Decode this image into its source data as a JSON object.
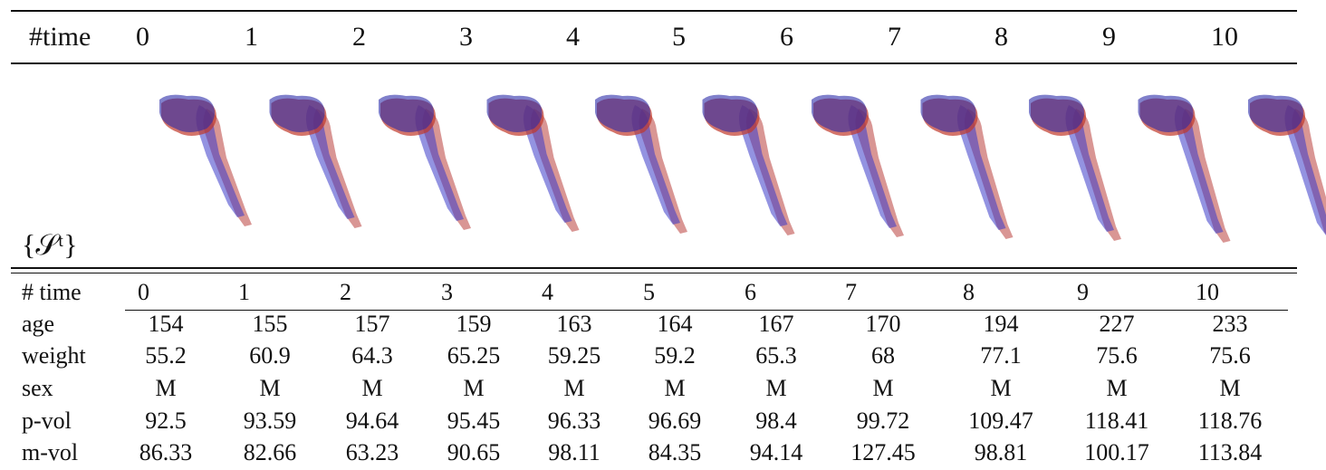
{
  "figure": {
    "header_label": "#time",
    "times": [
      "0",
      "1",
      "2",
      "3",
      "4",
      "5",
      "6",
      "7",
      "8",
      "9",
      "10"
    ],
    "shape_label": "{𝒮ᵗ}"
  },
  "table": {
    "header": [
      "# time",
      "0",
      "1",
      "2",
      "3",
      "4",
      "5",
      "6",
      "7",
      "8",
      "9",
      "10"
    ],
    "rows": [
      [
        "age",
        "154",
        "155",
        "157",
        "159",
        "163",
        "164",
        "167",
        "170",
        "194",
        "227",
        "233"
      ],
      [
        "weight",
        "55.2",
        "60.9",
        "64.3",
        "65.25",
        "59.25",
        "59.2",
        "65.3",
        "68",
        "77.1",
        "75.6",
        "75.6"
      ],
      [
        "sex",
        "M",
        "M",
        "M",
        "M",
        "M",
        "M",
        "M",
        "M",
        "M",
        "M",
        "M"
      ],
      [
        "p-vol",
        "92.5",
        "93.59",
        "94.64",
        "95.45",
        "96.33",
        "96.69",
        "98.4",
        "99.72",
        "109.47",
        "118.41",
        "118.76"
      ],
      [
        "m-vol",
        "86.33",
        "82.66",
        "63.23",
        "90.65",
        "98.11",
        "84.35",
        "94.14",
        "127.45",
        "98.81",
        "100.17",
        "113.84"
      ]
    ]
  }
}
